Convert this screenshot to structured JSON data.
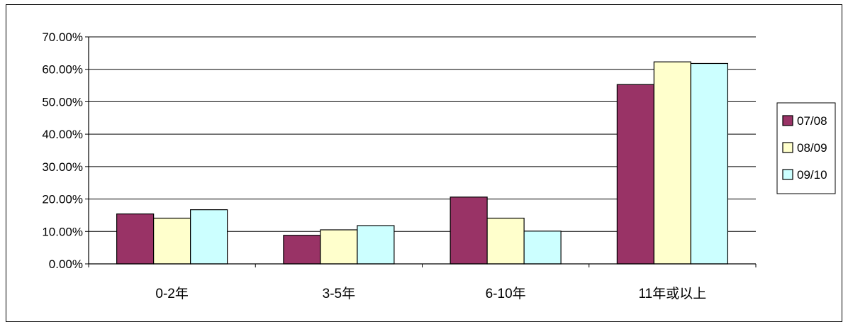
{
  "chart_data": {
    "type": "bar",
    "title": "",
    "xlabel": "",
    "ylabel": "",
    "categories": [
      "0-2年",
      "3-5年",
      "6-10年",
      "11年或以上"
    ],
    "series": [
      {
        "name": "07/08",
        "color": "#993366",
        "values": [
          15.4,
          8.8,
          20.6,
          55.3
        ]
      },
      {
        "name": "08/09",
        "color": "#FFFFCC",
        "values": [
          14.1,
          10.5,
          14.1,
          62.3
        ]
      },
      {
        "name": "09/10",
        "color": "#CCFFFF",
        "values": [
          16.7,
          11.8,
          10.1,
          61.8
        ]
      }
    ],
    "ylim": [
      0,
      70
    ],
    "yticks": [
      "0.00%",
      "10.00%",
      "20.00%",
      "30.00%",
      "40.00%",
      "50.00%",
      "60.00%",
      "70.00%"
    ],
    "grid": true,
    "legend_position": "right",
    "bar_stroke": "#000000"
  }
}
